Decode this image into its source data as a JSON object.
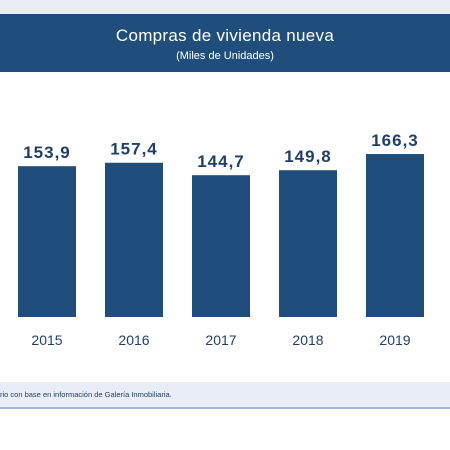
{
  "header": {
    "title": "Compras de vivienda nueva",
    "subtitle": "(Miles de Unidades)"
  },
  "footer": {
    "source": "rio con base en información de Galería Inmobiliaria."
  },
  "colors": {
    "bar": "#1f4e7c",
    "header_bg": "#1f4e7c",
    "label": "#1f3f6a"
  },
  "chart_data": {
    "type": "bar",
    "title": "Compras de vivienda nueva",
    "subtitle": "(Miles de Unidades)",
    "categories": [
      "2015",
      "2016",
      "2017",
      "2018",
      "2019"
    ],
    "values": [
      153.9,
      157.4,
      144.7,
      149.8,
      166.3
    ],
    "value_labels": [
      "153,9",
      "157,4",
      "144,7",
      "149,8",
      "166,3"
    ],
    "xlabel": "",
    "ylabel": "",
    "grid": false,
    "legend": "none"
  }
}
